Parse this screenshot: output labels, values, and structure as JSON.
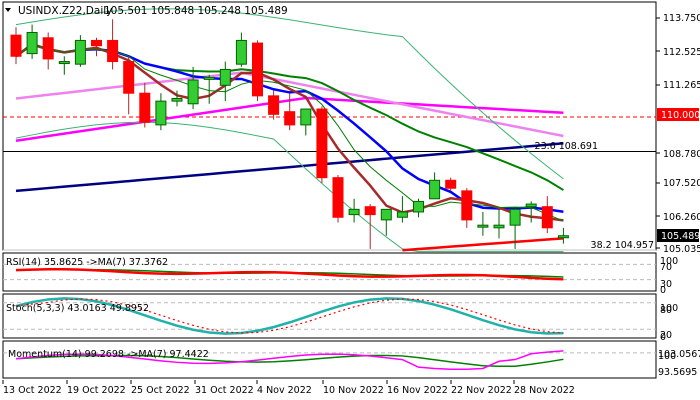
{
  "header": {
    "symbol": "USINDX.Z22,Daily",
    "ohlc": "105.501 105.848 105.248 105.489",
    "dropdown_icon": "triangle-down-icon"
  },
  "price_axis": {
    "ticks": [
      "113.750",
      "112.525",
      "111.265",
      "108.780",
      "107.520",
      "106.260",
      "105.035"
    ],
    "current_price_label": "105.489",
    "level_label": "110.000"
  },
  "fib_levels": [
    {
      "label": "23.6 108.691",
      "value": 108.691
    },
    {
      "label": "38.2 104.957",
      "value": 104.957
    }
  ],
  "indicators": {
    "rsi": {
      "label": "RSI(14) 35.8625  ->MA(7) 37.3762",
      "levels": [
        "100",
        "70",
        "30",
        "0"
      ]
    },
    "stoch": {
      "label": "Stoch(5,3,3) 43.0163 49.8952",
      "levels": [
        "100",
        "80",
        "20",
        "0"
      ]
    },
    "momentum": {
      "label": "Momentum(14) 99.2698  ->MA(7) 97.4422",
      "levels": [
        "103.0567",
        "100",
        "93.5695"
      ]
    }
  },
  "time_axis": [
    "13 Oct 2022",
    "19 Oct 2022",
    "25 Oct 2022",
    "31 Oct 2022",
    "4 Nov 2022",
    "10 Nov 2022",
    "16 Nov 2022",
    "22 Nov 2022",
    "28 Nov 2022"
  ],
  "colors": {
    "bull": "#33cc33",
    "bear": "#ff0000",
    "ma_short": "#a52a2a",
    "ma_blue": "#0000ff",
    "ma_navy": "#000080",
    "ma_green": "#008000",
    "ma_violet": "#ee82ee",
    "ma_magenta": "#ff00ff",
    "bollinger": "#3cb371",
    "stoch_main": "#20b2aa",
    "current_price_bg": "#000000",
    "level_bg": "#ff0000"
  },
  "chart_data": {
    "type": "candlestick",
    "title": "USINDX.Z22, Daily",
    "ylim": [
      105.0,
      114.0
    ],
    "categories": [
      "13 Oct",
      "14 Oct",
      "17 Oct",
      "18 Oct",
      "19 Oct",
      "20 Oct",
      "21 Oct",
      "24 Oct",
      "25 Oct",
      "26 Oct",
      "27 Oct",
      "28 Oct",
      "31 Oct",
      "1 Nov",
      "2 Nov",
      "3 Nov",
      "4 Nov",
      "7 Nov",
      "8 Nov",
      "9 Nov",
      "10 Nov",
      "11 Nov",
      "14 Nov",
      "15 Nov",
      "16 Nov",
      "17 Nov",
      "18 Nov",
      "21 Nov",
      "22 Nov",
      "23 Nov",
      "24 Nov",
      "25 Nov",
      "28 Nov",
      "29 Nov",
      "30 Nov"
    ],
    "candles": [
      {
        "o": 113.1,
        "h": 113.4,
        "l": 112.0,
        "c": 112.3
      },
      {
        "o": 112.4,
        "h": 113.5,
        "l": 112.2,
        "c": 113.2
      },
      {
        "o": 113.0,
        "h": 113.2,
        "l": 111.8,
        "c": 112.2
      },
      {
        "o": 112.1,
        "h": 112.3,
        "l": 111.6,
        "c": 112.1
      },
      {
        "o": 112.0,
        "h": 113.1,
        "l": 111.9,
        "c": 112.9
      },
      {
        "o": 112.9,
        "h": 113.0,
        "l": 112.3,
        "c": 112.7
      },
      {
        "o": 112.9,
        "h": 113.7,
        "l": 111.8,
        "c": 112.1
      },
      {
        "o": 112.1,
        "h": 112.3,
        "l": 110.1,
        "c": 110.9
      },
      {
        "o": 110.9,
        "h": 111.3,
        "l": 109.6,
        "c": 109.8
      },
      {
        "o": 109.7,
        "h": 110.9,
        "l": 109.5,
        "c": 110.6
      },
      {
        "o": 110.6,
        "h": 111.0,
        "l": 110.4,
        "c": 110.7
      },
      {
        "o": 110.5,
        "h": 111.9,
        "l": 110.3,
        "c": 111.4
      },
      {
        "o": 111.5,
        "h": 111.6,
        "l": 110.5,
        "c": 111.5
      },
      {
        "o": 111.2,
        "h": 112.1,
        "l": 110.6,
        "c": 111.8
      },
      {
        "o": 112.0,
        "h": 113.2,
        "l": 111.9,
        "c": 112.9
      },
      {
        "o": 112.8,
        "h": 112.9,
        "l": 110.6,
        "c": 110.8
      },
      {
        "o": 110.8,
        "h": 111.0,
        "l": 109.9,
        "c": 110.1
      },
      {
        "o": 110.2,
        "h": 110.9,
        "l": 109.5,
        "c": 109.7
      },
      {
        "o": 109.7,
        "h": 110.3,
        "l": 109.3,
        "c": 110.3
      },
      {
        "o": 110.3,
        "h": 110.4,
        "l": 107.5,
        "c": 107.7
      },
      {
        "o": 107.7,
        "h": 107.8,
        "l": 106.0,
        "c": 106.2
      },
      {
        "o": 106.3,
        "h": 106.9,
        "l": 106.0,
        "c": 106.5
      },
      {
        "o": 106.6,
        "h": 106.7,
        "l": 105.0,
        "c": 106.3
      },
      {
        "o": 106.1,
        "h": 106.4,
        "l": 105.5,
        "c": 106.5
      },
      {
        "o": 106.2,
        "h": 107.0,
        "l": 106.0,
        "c": 106.4
      },
      {
        "o": 106.4,
        "h": 106.9,
        "l": 106.2,
        "c": 106.8
      },
      {
        "o": 106.9,
        "h": 107.9,
        "l": 106.9,
        "c": 107.6
      },
      {
        "o": 107.6,
        "h": 107.7,
        "l": 107.2,
        "c": 107.3
      },
      {
        "o": 107.2,
        "h": 107.3,
        "l": 105.8,
        "c": 106.1
      },
      {
        "o": 105.9,
        "h": 106.4,
        "l": 105.5,
        "c": 105.9
      },
      {
        "o": 105.8,
        "h": 106.5,
        "l": 105.4,
        "c": 105.9
      },
      {
        "o": 105.9,
        "h": 106.6,
        "l": 105.0,
        "c": 106.5
      },
      {
        "o": 106.6,
        "h": 106.8,
        "l": 106.0,
        "c": 106.7
      },
      {
        "o": 106.6,
        "h": 107.0,
        "l": 105.6,
        "c": 105.8
      },
      {
        "o": 105.5,
        "h": 105.8,
        "l": 105.2,
        "c": 105.5
      }
    ],
    "horizontal_lines": [
      {
        "value": 110.0,
        "style": "dashed",
        "color": "#ff0000",
        "label": "110.000"
      },
      {
        "value": 108.691,
        "style": "solid",
        "color": "#000000",
        "label": "23.6 108.691"
      },
      {
        "value": 104.957,
        "style": "solid",
        "color": "#c0c0c0",
        "label": "38.2 104.957"
      }
    ],
    "subcharts": [
      {
        "name": "RSI(14)",
        "value": 35.8625,
        "ma7": 37.3762,
        "range": [
          0,
          100
        ],
        "levels": [
          70,
          30
        ]
      },
      {
        "name": "Stoch(5,3,3)",
        "main": 43.0163,
        "signal": 49.8952,
        "range": [
          0,
          100
        ],
        "levels": [
          80,
          20
        ]
      },
      {
        "name": "Momentum(14)",
        "value": 99.2698,
        "ma7": 97.4422,
        "range": [
          93.5695,
          103.0567
        ],
        "levels": [
          100
        ]
      }
    ],
    "xlabel": "",
    "ylabel": ""
  }
}
